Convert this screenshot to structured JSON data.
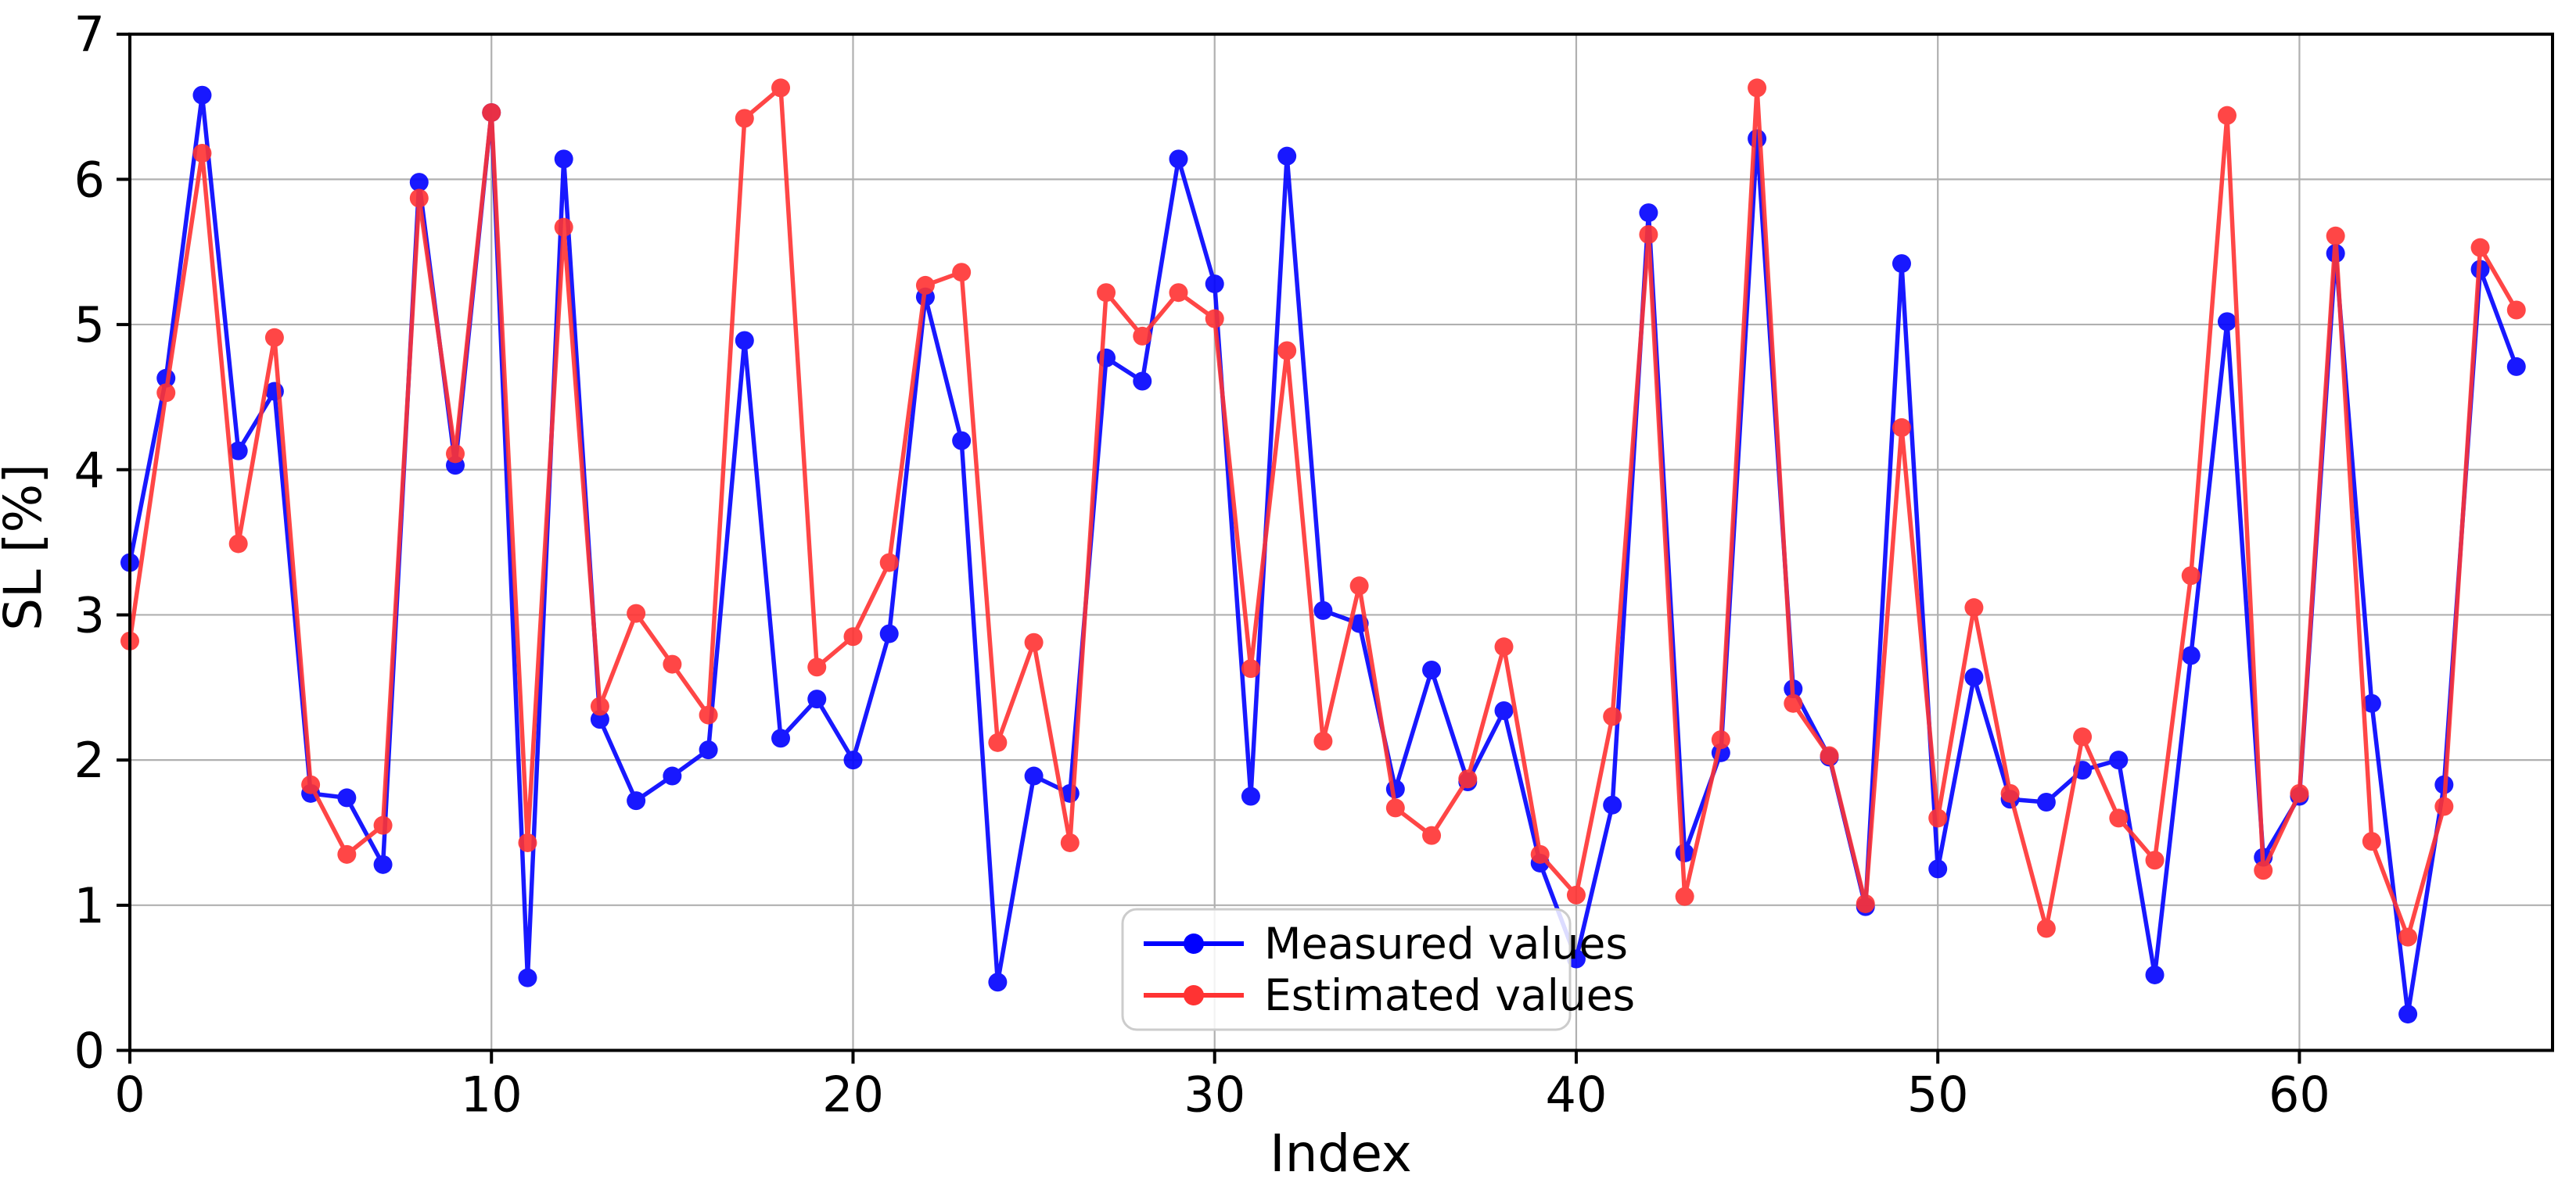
{
  "chart_data": {
    "type": "line",
    "title": "",
    "xlabel": "Index",
    "ylabel": "SL [%]",
    "xlim": [
      0,
      67
    ],
    "ylim": [
      0,
      7
    ],
    "xticks": [
      0,
      10,
      20,
      30,
      40,
      50,
      60
    ],
    "yticks": [
      0,
      1,
      2,
      3,
      4,
      5,
      6,
      7
    ],
    "grid": true,
    "grid_color": "#b0b0b0",
    "legend_position": "lower-center",
    "x": [
      0,
      1,
      2,
      3,
      4,
      5,
      6,
      7,
      8,
      9,
      10,
      11,
      12,
      13,
      14,
      15,
      16,
      17,
      18,
      19,
      20,
      21,
      22,
      23,
      24,
      25,
      26,
      27,
      28,
      29,
      30,
      31,
      32,
      33,
      34,
      35,
      36,
      37,
      38,
      39,
      40,
      41,
      42,
      43,
      44,
      45,
      46,
      47,
      48,
      49,
      50,
      51,
      52,
      53,
      54,
      55,
      56,
      57,
      58,
      59,
      60,
      61,
      62,
      63,
      64,
      65,
      66
    ],
    "series": [
      {
        "name": "Measured values",
        "color": "#0000ff",
        "marker": "circle",
        "values": [
          3.36,
          4.63,
          6.58,
          4.13,
          4.54,
          1.77,
          1.74,
          1.28,
          5.98,
          4.03,
          6.46,
          0.5,
          6.14,
          2.28,
          1.72,
          1.89,
          2.07,
          4.89,
          2.15,
          2.42,
          2.0,
          2.87,
          5.19,
          4.2,
          0.47,
          1.89,
          1.77,
          4.77,
          4.61,
          6.14,
          5.28,
          1.75,
          6.16,
          3.03,
          2.94,
          1.8,
          2.62,
          1.85,
          2.34,
          1.29,
          0.63,
          1.69,
          5.77,
          1.36,
          2.05,
          6.28,
          2.49,
          2.02,
          0.99,
          5.42,
          1.25,
          2.57,
          1.73,
          1.71,
          1.93,
          2.0,
          0.52,
          2.72,
          5.02,
          1.33,
          1.75,
          5.49,
          2.39,
          0.25,
          1.83,
          5.38,
          4.71
        ]
      },
      {
        "name": "Estimated values",
        "color": "#ff3333",
        "marker": "circle",
        "values": [
          2.82,
          4.53,
          6.18,
          3.49,
          4.91,
          1.83,
          1.35,
          1.55,
          5.87,
          4.11,
          6.46,
          1.43,
          5.67,
          2.37,
          3.01,
          2.66,
          2.31,
          6.42,
          6.63,
          2.64,
          2.85,
          3.36,
          5.27,
          5.36,
          2.12,
          2.81,
          1.43,
          5.22,
          4.92,
          5.22,
          5.04,
          2.63,
          4.82,
          2.13,
          3.2,
          1.67,
          1.48,
          1.87,
          2.78,
          1.35,
          1.07,
          2.3,
          5.62,
          1.06,
          2.14,
          6.63,
          2.39,
          2.03,
          1.01,
          4.29,
          1.6,
          3.05,
          1.77,
          0.84,
          2.16,
          1.6,
          1.31,
          3.27,
          6.44,
          1.24,
          1.77,
          5.61,
          1.44,
          0.78,
          1.68,
          5.53,
          5.1
        ]
      }
    ]
  }
}
